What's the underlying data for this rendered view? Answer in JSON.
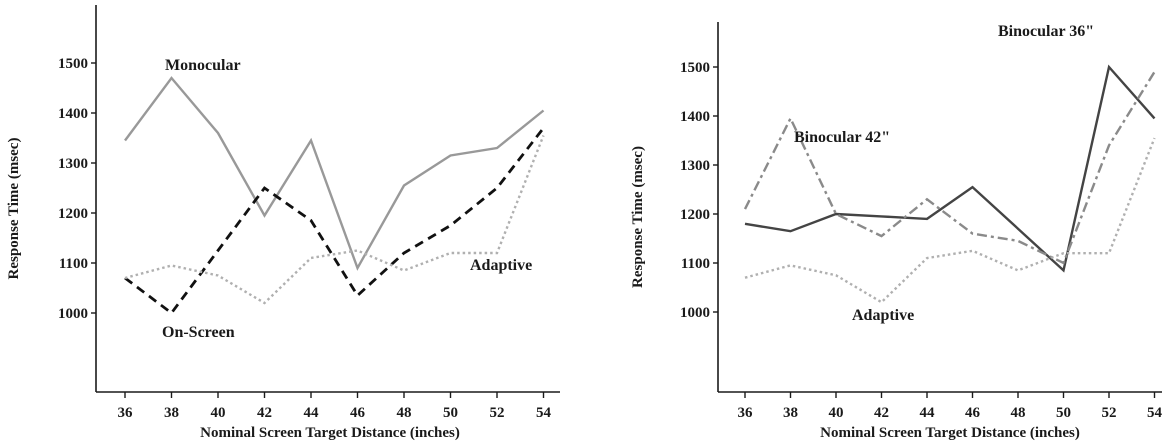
{
  "chart_data": [
    {
      "type": "line",
      "xlabel": "Nominal Screen Target Distance (inches)",
      "ylabel": "Response Time (msec)",
      "x": [
        36,
        38,
        40,
        42,
        44,
        46,
        48,
        50,
        52,
        54
      ],
      "yticks": [
        1000,
        1100,
        1200,
        1300,
        1400,
        1500
      ],
      "ylim": [
        860,
        1620
      ],
      "grid": false,
      "series": [
        {
          "name": "Monocular",
          "style": "solid",
          "color": "#999999",
          "values": [
            1345,
            1470,
            1360,
            1195,
            1345,
            1090,
            1255,
            1315,
            1330,
            1405
          ]
        },
        {
          "name": "On-Screen",
          "style": "dashed",
          "color": "#111111",
          "values": [
            1070,
            1000,
            1125,
            1250,
            1185,
            1035,
            1120,
            1175,
            1250,
            1370
          ]
        },
        {
          "name": "Adaptive",
          "style": "dotted",
          "color": "#b0b0b0",
          "values": [
            1070,
            1095,
            1075,
            1020,
            1110,
            1125,
            1085,
            1120,
            1120,
            1355
          ]
        }
      ],
      "annotations": [
        {
          "text": "Monocular",
          "series": "Monocular"
        },
        {
          "text": "On-Screen",
          "series": "On-Screen"
        },
        {
          "text": "Adaptive",
          "series": "Adaptive"
        }
      ]
    },
    {
      "type": "line",
      "xlabel": "Nominal Screen Target Distance (inches)",
      "ylabel": "Response Time (msec)",
      "x": [
        36,
        38,
        40,
        42,
        44,
        46,
        48,
        50,
        52,
        54
      ],
      "yticks": [
        1000,
        1100,
        1200,
        1300,
        1400,
        1500
      ],
      "ylim": [
        860,
        1620
      ],
      "grid": false,
      "series": [
        {
          "name": "Binocular 36\"",
          "style": "solid",
          "color": "#444444",
          "values": [
            1180,
            1165,
            1200,
            1195,
            1190,
            1255,
            1170,
            1085,
            1500,
            1395
          ]
        },
        {
          "name": "Binocular 42\"",
          "style": "dashdot",
          "color": "#8a8a8a",
          "values": [
            1210,
            1395,
            1200,
            1155,
            1230,
            1160,
            1145,
            1100,
            1340,
            1490
          ]
        },
        {
          "name": "Adaptive",
          "style": "dotted",
          "color": "#b0b0b0",
          "values": [
            1070,
            1095,
            1075,
            1020,
            1110,
            1125,
            1085,
            1120,
            1120,
            1355
          ]
        }
      ],
      "annotations": [
        {
          "text": "Binocular 36\"",
          "series": "Binocular 36\""
        },
        {
          "text": "Binocular 42\"",
          "series": "Binocular 42\""
        },
        {
          "text": "Adaptive",
          "series": "Adaptive"
        }
      ]
    }
  ]
}
